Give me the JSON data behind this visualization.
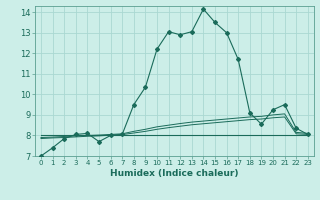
{
  "xlabel": "Humidex (Indice chaleur)",
  "bg_color": "#cceee8",
  "grid_color": "#aad8d2",
  "line_color": "#1a6b5a",
  "spine_color": "#5a9e90",
  "xlim": [
    -0.5,
    23.5
  ],
  "ylim": [
    7,
    14.3
  ],
  "yticks": [
    7,
    8,
    9,
    10,
    11,
    12,
    13,
    14
  ],
  "xticks": [
    0,
    1,
    2,
    3,
    4,
    5,
    6,
    7,
    8,
    9,
    10,
    11,
    12,
    13,
    14,
    15,
    16,
    17,
    18,
    19,
    20,
    21,
    22,
    23
  ],
  "main_curve_x": [
    0,
    1,
    2,
    3,
    4,
    5,
    6,
    7,
    8,
    9,
    10,
    11,
    12,
    13,
    14,
    15,
    16,
    17,
    18,
    19,
    20,
    21,
    22,
    23
  ],
  "main_curve_y": [
    7.0,
    7.4,
    7.85,
    8.05,
    8.1,
    7.7,
    8.0,
    8.05,
    9.5,
    10.35,
    12.2,
    13.05,
    12.9,
    13.05,
    14.15,
    13.5,
    13.0,
    11.7,
    9.1,
    8.55,
    9.25,
    9.5,
    8.35,
    8.05
  ],
  "line2_x": [
    0,
    1,
    2,
    3,
    4,
    5,
    6,
    7,
    8,
    9,
    10,
    11,
    12,
    13,
    14,
    15,
    16,
    17,
    18,
    19,
    20,
    21,
    22,
    23
  ],
  "line2_y": [
    7.9,
    7.92,
    7.95,
    7.98,
    8.0,
    8.02,
    8.05,
    8.08,
    8.2,
    8.3,
    8.42,
    8.5,
    8.58,
    8.65,
    8.7,
    8.75,
    8.8,
    8.85,
    8.9,
    8.93,
    9.0,
    9.05,
    8.15,
    8.1
  ],
  "line3_x": [
    0,
    1,
    2,
    3,
    4,
    5,
    6,
    7,
    8,
    9,
    10,
    11,
    12,
    13,
    14,
    15,
    16,
    17,
    18,
    19,
    20,
    21,
    22,
    23
  ],
  "line3_y": [
    7.85,
    7.88,
    7.9,
    7.93,
    7.96,
    7.98,
    8.01,
    8.04,
    8.12,
    8.2,
    8.3,
    8.38,
    8.45,
    8.52,
    8.57,
    8.62,
    8.67,
    8.72,
    8.77,
    8.8,
    8.86,
    8.9,
    8.08,
    8.05
  ],
  "line4_x": [
    0,
    23
  ],
  "line4_y": [
    8.0,
    8.0
  ]
}
